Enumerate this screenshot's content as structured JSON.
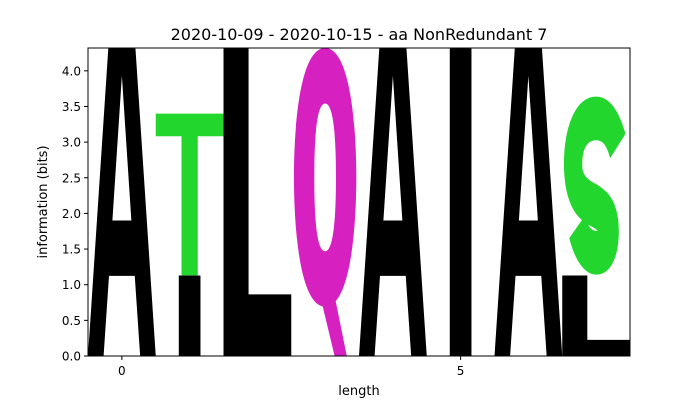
{
  "chart_data": {
    "type": "sequence_logo",
    "title": "2020-10-09 - 2020-10-15 - aa NonRedundant 7",
    "xlabel": "length",
    "ylabel": "information (bits)",
    "xlim": [
      -0.5,
      7.5
    ],
    "ylim": [
      0,
      4.32
    ],
    "xticks": [
      0,
      5
    ],
    "yticks": [
      0.0,
      0.5,
      1.0,
      1.5,
      2.0,
      2.5,
      3.0,
      3.5,
      4.0
    ],
    "colors": {
      "A": "#000000",
      "T": "#22d62e",
      "L": "#000000",
      "Q": "#d620c0",
      "I": "#000000",
      "S": "#22d62e"
    },
    "positions": [
      {
        "x": 0,
        "stack": [
          {
            "letter": "A",
            "bits": 4.32
          }
        ]
      },
      {
        "x": 1,
        "stack": [
          {
            "letter": "I",
            "bits": 1.13
          },
          {
            "letter": "T",
            "bits": 2.27
          }
        ]
      },
      {
        "x": 2,
        "stack": [
          {
            "letter": "L",
            "bits": 4.32
          }
        ]
      },
      {
        "x": 3,
        "stack": [
          {
            "letter": "Q",
            "bits": 4.32
          }
        ]
      },
      {
        "x": 4,
        "stack": [
          {
            "letter": "A",
            "bits": 4.32
          }
        ]
      },
      {
        "x": 5,
        "stack": [
          {
            "letter": "I",
            "bits": 4.32
          }
        ]
      },
      {
        "x": 6,
        "stack": [
          {
            "letter": "A",
            "bits": 4.32
          }
        ]
      },
      {
        "x": 7,
        "stack": [
          {
            "letter": "L",
            "bits": 1.13
          },
          {
            "letter": "S",
            "bits": 2.27
          }
        ]
      }
    ]
  }
}
